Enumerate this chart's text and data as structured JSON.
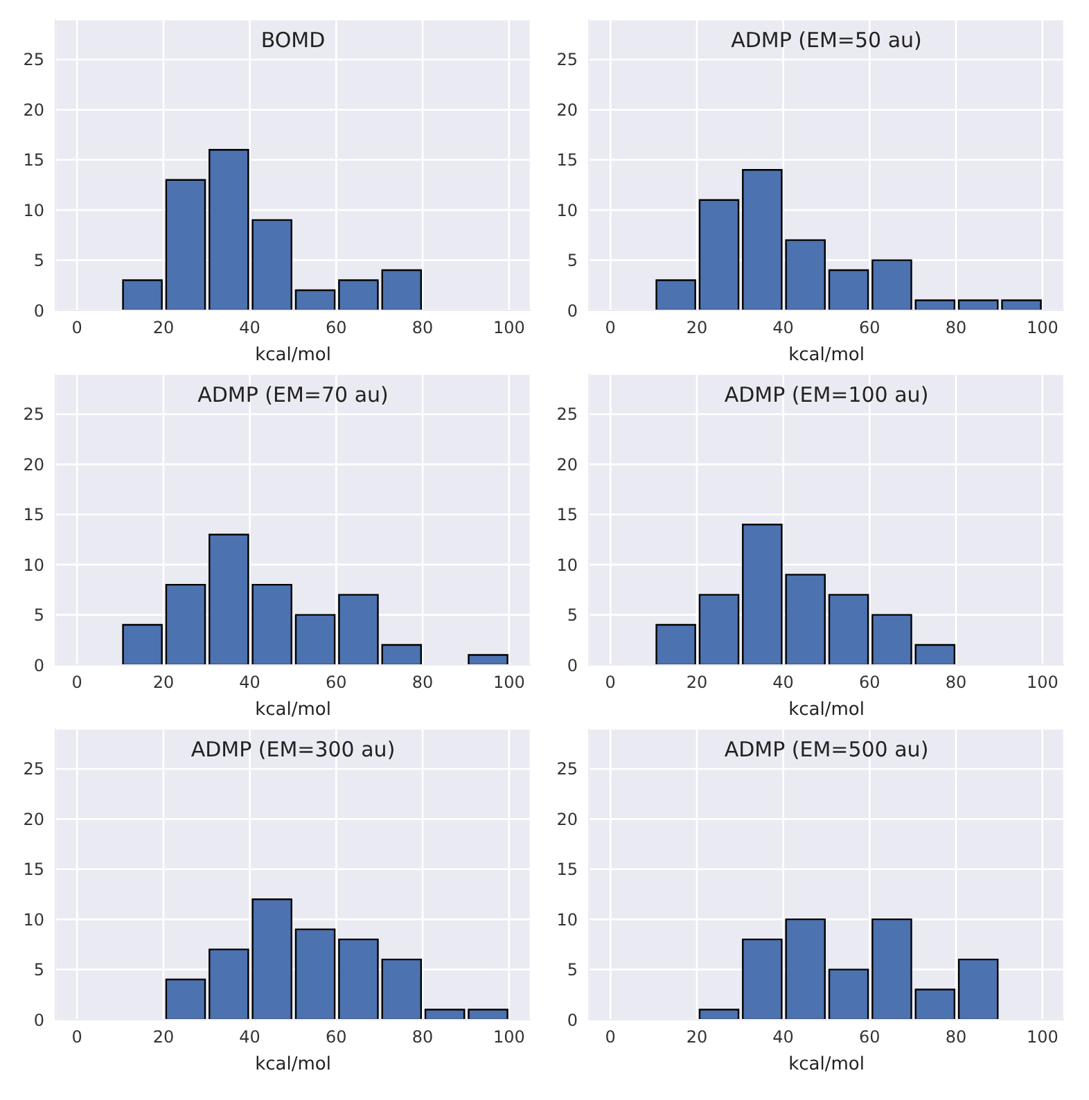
{
  "chart_data": [
    {
      "type": "histogram",
      "title": "BOMD",
      "xlabel": "kcal/mol",
      "bins": [
        0,
        10,
        20,
        30,
        40,
        50,
        60,
        70,
        80,
        90,
        100
      ],
      "values": [
        0,
        3,
        13,
        16,
        9,
        2,
        3,
        4,
        0,
        0
      ],
      "color": "#4c72b0",
      "xlim": [
        -5,
        105
      ],
      "xticks": [
        0,
        20,
        40,
        60,
        80,
        100
      ],
      "ylim": [
        0,
        29
      ],
      "yticks": [
        0,
        5,
        10,
        15,
        20,
        25
      ],
      "grid": true
    },
    {
      "type": "histogram",
      "title": "ADMP (EM=50 au)",
      "xlabel": "kcal/mol",
      "bins": [
        0,
        10,
        20,
        30,
        40,
        50,
        60,
        70,
        80,
        90,
        100
      ],
      "values": [
        0,
        3,
        11,
        14,
        7,
        4,
        5,
        1,
        1,
        1
      ],
      "color": "#4c72b0",
      "xlim": [
        -5,
        105
      ],
      "xticks": [
        0,
        20,
        40,
        60,
        80,
        100
      ],
      "ylim": [
        0,
        29
      ],
      "yticks": [
        0,
        5,
        10,
        15,
        20,
        25
      ],
      "grid": true
    },
    {
      "type": "histogram",
      "title": "ADMP (EM=70 au)",
      "xlabel": "kcal/mol",
      "bins": [
        0,
        10,
        20,
        30,
        40,
        50,
        60,
        70,
        80,
        90,
        100
      ],
      "values": [
        0,
        4,
        8,
        13,
        8,
        5,
        7,
        2,
        0,
        1
      ],
      "color": "#4c72b0",
      "xlim": [
        -5,
        105
      ],
      "xticks": [
        0,
        20,
        40,
        60,
        80,
        100
      ],
      "ylim": [
        0,
        29
      ],
      "yticks": [
        0,
        5,
        10,
        15,
        20,
        25
      ],
      "grid": true
    },
    {
      "type": "histogram",
      "title": "ADMP (EM=100 au)",
      "xlabel": "kcal/mol",
      "bins": [
        0,
        10,
        20,
        30,
        40,
        50,
        60,
        70,
        80,
        90,
        100
      ],
      "values": [
        0,
        4,
        7,
        14,
        9,
        7,
        5,
        2,
        0,
        0
      ],
      "color": "#4c72b0",
      "xlim": [
        -5,
        105
      ],
      "xticks": [
        0,
        20,
        40,
        60,
        80,
        100
      ],
      "ylim": [
        0,
        29
      ],
      "yticks": [
        0,
        5,
        10,
        15,
        20,
        25
      ],
      "grid": true
    },
    {
      "type": "histogram",
      "title": "ADMP (EM=300 au)",
      "xlabel": "kcal/mol",
      "bins": [
        0,
        10,
        20,
        30,
        40,
        50,
        60,
        70,
        80,
        90,
        100
      ],
      "values": [
        0,
        0,
        4,
        7,
        12,
        9,
        8,
        6,
        1,
        1
      ],
      "color": "#4c72b0",
      "xlim": [
        -5,
        105
      ],
      "xticks": [
        0,
        20,
        40,
        60,
        80,
        100
      ],
      "ylim": [
        0,
        29
      ],
      "yticks": [
        0,
        5,
        10,
        15,
        20,
        25
      ],
      "grid": true
    },
    {
      "type": "histogram",
      "title": "ADMP (EM=500 au)",
      "xlabel": "kcal/mol",
      "bins": [
        0,
        10,
        20,
        30,
        40,
        50,
        60,
        70,
        80,
        90,
        100
      ],
      "values": [
        0,
        0,
        1,
        8,
        10,
        5,
        10,
        3,
        6,
        0
      ],
      "color": "#4c72b0",
      "xlim": [
        -5,
        105
      ],
      "xticks": [
        0,
        20,
        40,
        60,
        80,
        100
      ],
      "ylim": [
        0,
        29
      ],
      "yticks": [
        0,
        5,
        10,
        15,
        20,
        25
      ],
      "grid": true
    }
  ]
}
